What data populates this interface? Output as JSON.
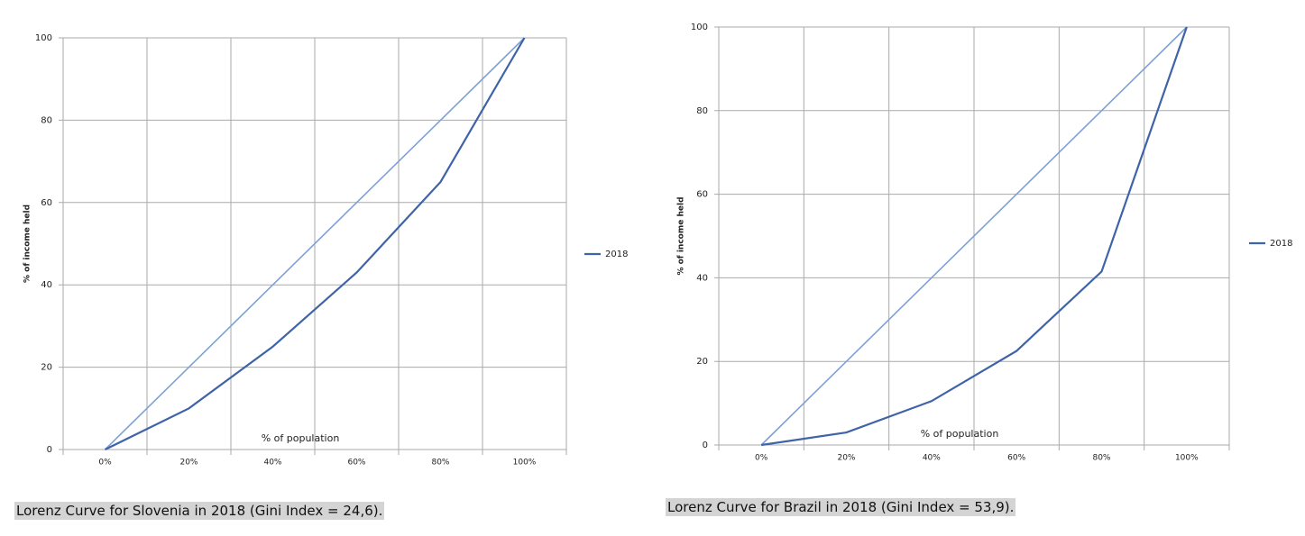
{
  "chart_data": [
    {
      "type": "line",
      "ylabel": "% of income held",
      "xlabel": "% of population",
      "categories": [
        "0%",
        "20%",
        "40%",
        "60%",
        "80%",
        "100%"
      ],
      "series": [
        {
          "color": "#7ea1d4",
          "values": [
            0,
            20,
            40,
            60,
            80,
            100
          ]
        },
        {
          "name": "2018",
          "color": "#3f63a8",
          "values": [
            0,
            10,
            25,
            43,
            65,
            100
          ]
        }
      ],
      "ylim": [
        0,
        100
      ],
      "yticks": [
        0,
        20,
        40,
        60,
        80,
        100
      ],
      "grid": true,
      "legend": "right",
      "caption": "Lorenz Curve for Slovenia in 2018 (Gini Index = 24,6)."
    },
    {
      "type": "line",
      "ylabel": "% of income held",
      "xlabel": "% of population",
      "categories": [
        "0%",
        "20%",
        "40%",
        "60%",
        "80%",
        "100%"
      ],
      "series": [
        {
          "color": "#7ea1d4",
          "values": [
            0,
            20,
            40,
            60,
            80,
            100
          ]
        },
        {
          "name": "2018",
          "color": "#3f63a8",
          "values": [
            0,
            3,
            10.5,
            22.5,
            41.5,
            100
          ]
        }
      ],
      "ylim": [
        0,
        100
      ],
      "yticks": [
        0,
        20,
        40,
        60,
        80,
        100
      ],
      "grid": true,
      "legend": "right",
      "caption": "Lorenz Curve for Brazil in 2018 (Gini Index = 53,9)."
    }
  ]
}
